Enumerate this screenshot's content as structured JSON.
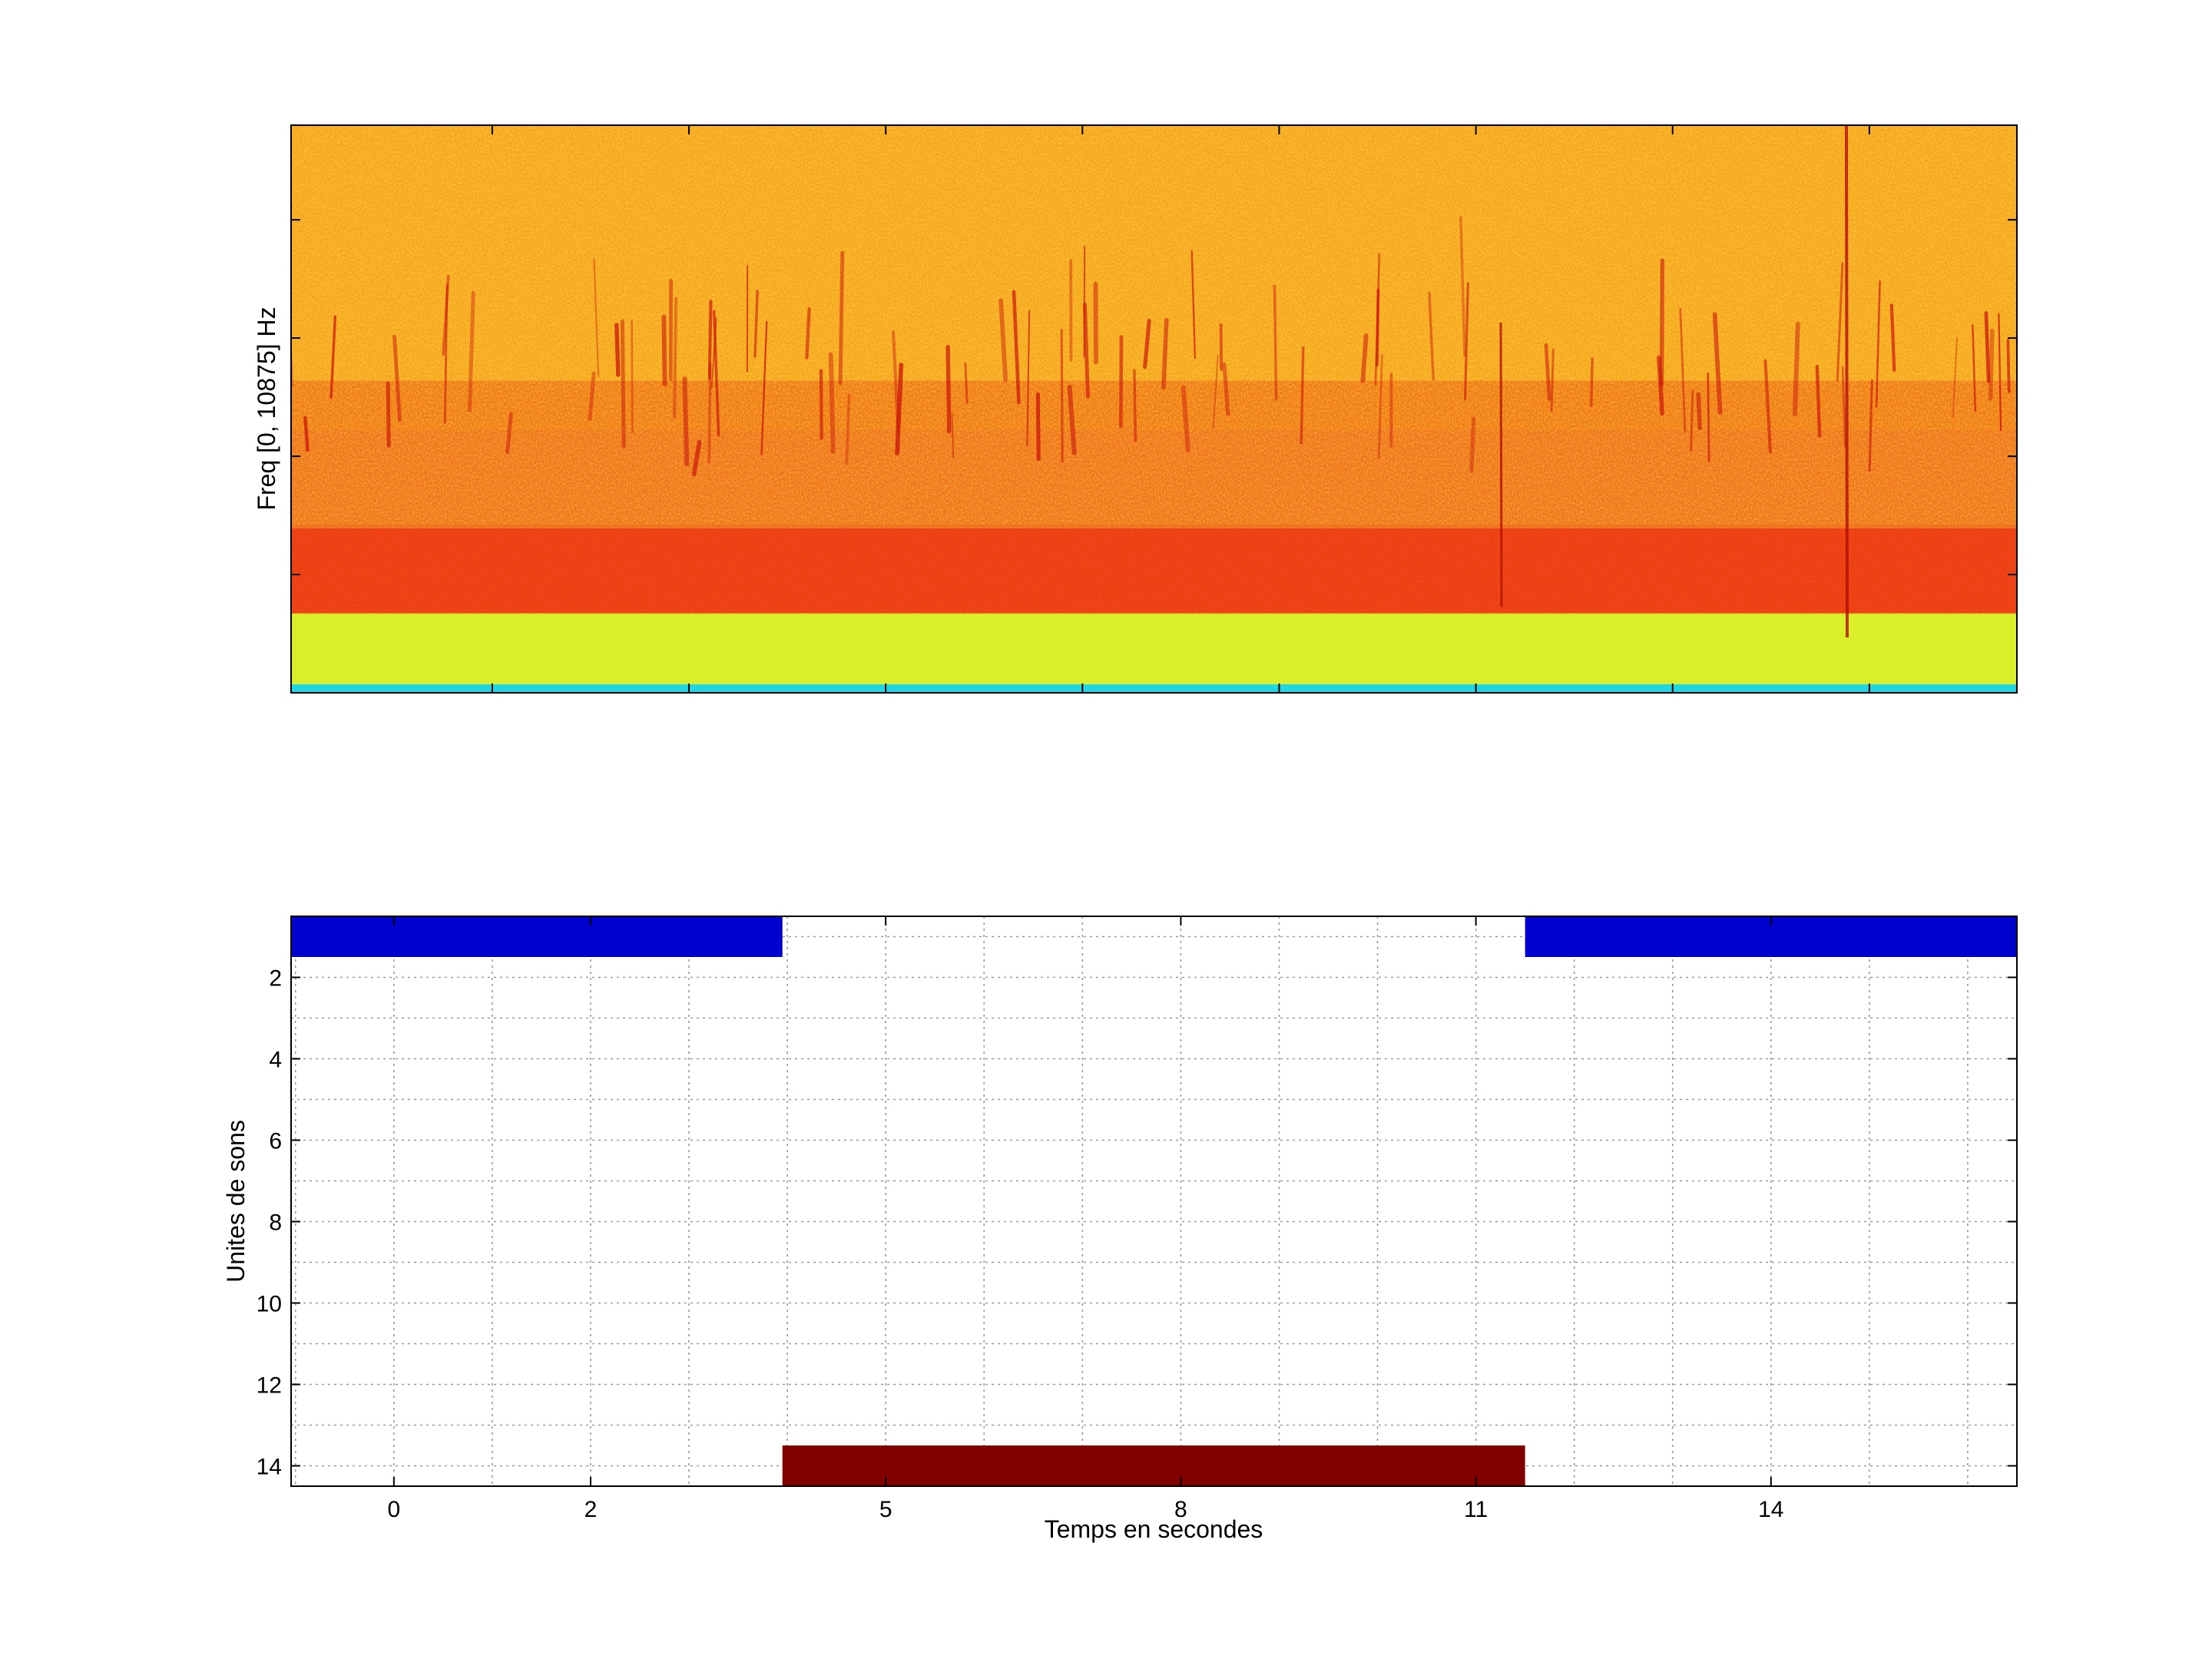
{
  "chart_data": [
    {
      "type": "heatmap",
      "subtype": "spectrogram",
      "ylabel": "Freq [0, 10875] Hz",
      "xlabel": "",
      "colormap": "jet",
      "x_ticks_labeled": false,
      "y_ticks_labeled": false,
      "xlim": [
        -1.045,
        16.5
      ],
      "bands": [
        {
          "from_frac": 0.0,
          "to_frac": 0.015,
          "color": "#1fd6e6"
        },
        {
          "from_frac": 0.015,
          "to_frac": 0.14,
          "color": "#d9ef2a"
        },
        {
          "from_frac": 0.14,
          "to_frac": 0.29,
          "color": "#ee3f10"
        },
        {
          "from_frac": 0.29,
          "to_frac": 0.55,
          "color": "#f07a17"
        },
        {
          "from_frac": 0.55,
          "to_frac": 1.0,
          "color": "#f6a51f"
        }
      ]
    },
    {
      "type": "bar",
      "subtype": "timeline",
      "xlabel": "Temps en secondes",
      "ylabel": "Unites de sons",
      "xlim": [
        -1.045,
        16.5
      ],
      "ylim": [
        0.5,
        14.5
      ],
      "y_reversed": true,
      "grid": true,
      "x_ticks": [
        0,
        2,
        5,
        8,
        11,
        14
      ],
      "x_tick_labels": [
        "0",
        "2",
        "5",
        "8",
        "11",
        "14"
      ],
      "y_ticks": [
        2,
        4,
        6,
        8,
        10,
        12,
        14
      ],
      "y_tick_labels": [
        "2",
        "4",
        "6",
        "8",
        "10",
        "12",
        "14"
      ],
      "segments": [
        {
          "unit": 1,
          "start": -1.045,
          "end": 3.95,
          "color": "#0000cc"
        },
        {
          "unit": 14,
          "start": 3.95,
          "end": 11.5,
          "color": "#800000"
        },
        {
          "unit": 1,
          "start": 11.5,
          "end": 16.5,
          "color": "#0000cc"
        }
      ]
    }
  ]
}
